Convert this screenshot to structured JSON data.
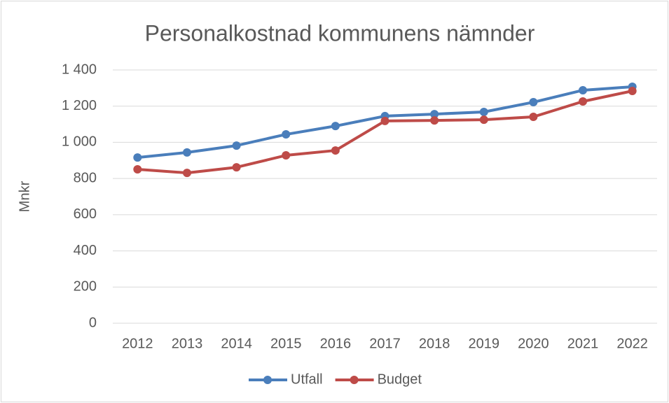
{
  "chart_data": {
    "type": "line",
    "title": "Personalkostnad kommunens nämnder",
    "y_label": "Mnkr",
    "categories": [
      "2012",
      "2013",
      "2014",
      "2015",
      "2016",
      "2017",
      "2018",
      "2019",
      "2020",
      "2021",
      "2022"
    ],
    "series": [
      {
        "name": "Utfall",
        "color": "#4a7ebb",
        "values": [
          916,
          944,
          982,
          1044,
          1090,
          1145,
          1156,
          1168,
          1222,
          1288,
          1307
        ]
      },
      {
        "name": "Budget",
        "color": "#be4b48",
        "values": [
          851,
          831,
          862,
          928,
          955,
          1118,
          1121,
          1125,
          1141,
          1226,
          1284
        ]
      }
    ],
    "ylim": [
      0,
      1400
    ],
    "yticks": [
      0,
      200,
      400,
      600,
      800,
      {
        "value": 1000,
        "label": "1 000"
      },
      {
        "value": 1200,
        "label": "1 200"
      },
      {
        "value": 1400,
        "label": "1 400"
      }
    ],
    "grid": true,
    "legend": "bottom"
  }
}
